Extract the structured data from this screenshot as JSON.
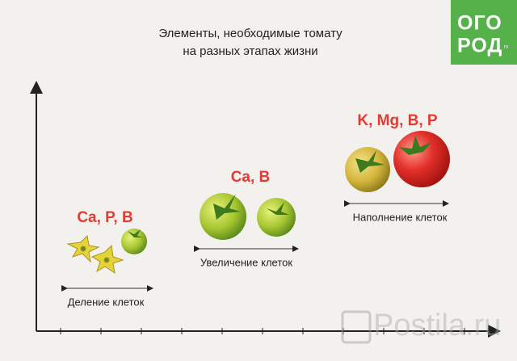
{
  "header": {
    "title_lines": [
      "Элементы, необходимые томату",
      "на разных этапах жизни"
    ]
  },
  "logo": {
    "lines": [
      "ОГО",
      "РОД"
    ],
    "suffix": "ru"
  },
  "stages": [
    {
      "elements": "Ca, P, B",
      "label": "Деление клеток"
    },
    {
      "elements": "Ca, B",
      "label": "Увеличение клеток"
    },
    {
      "elements": "K, Mg, B, P",
      "label": "Наполнение клеток"
    }
  ],
  "watermark": "Postila.ru"
}
